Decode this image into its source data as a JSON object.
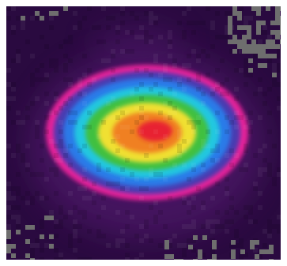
{
  "figure": {
    "kind": "false-color intensity map",
    "colors": {
      "background": "#2a0a40",
      "violet": "#5a1a78",
      "magenta": "#e8209a",
      "purple_blue": "#4a3ab0",
      "blue": "#2a7ae8",
      "cyan": "#20c8e0",
      "green": "#40c040",
      "yellow": "#f0e030",
      "orange": "#f08020",
      "red": "#e82030",
      "noise": "#6e6e6e"
    },
    "grid_lines": false,
    "legend": "none"
  }
}
